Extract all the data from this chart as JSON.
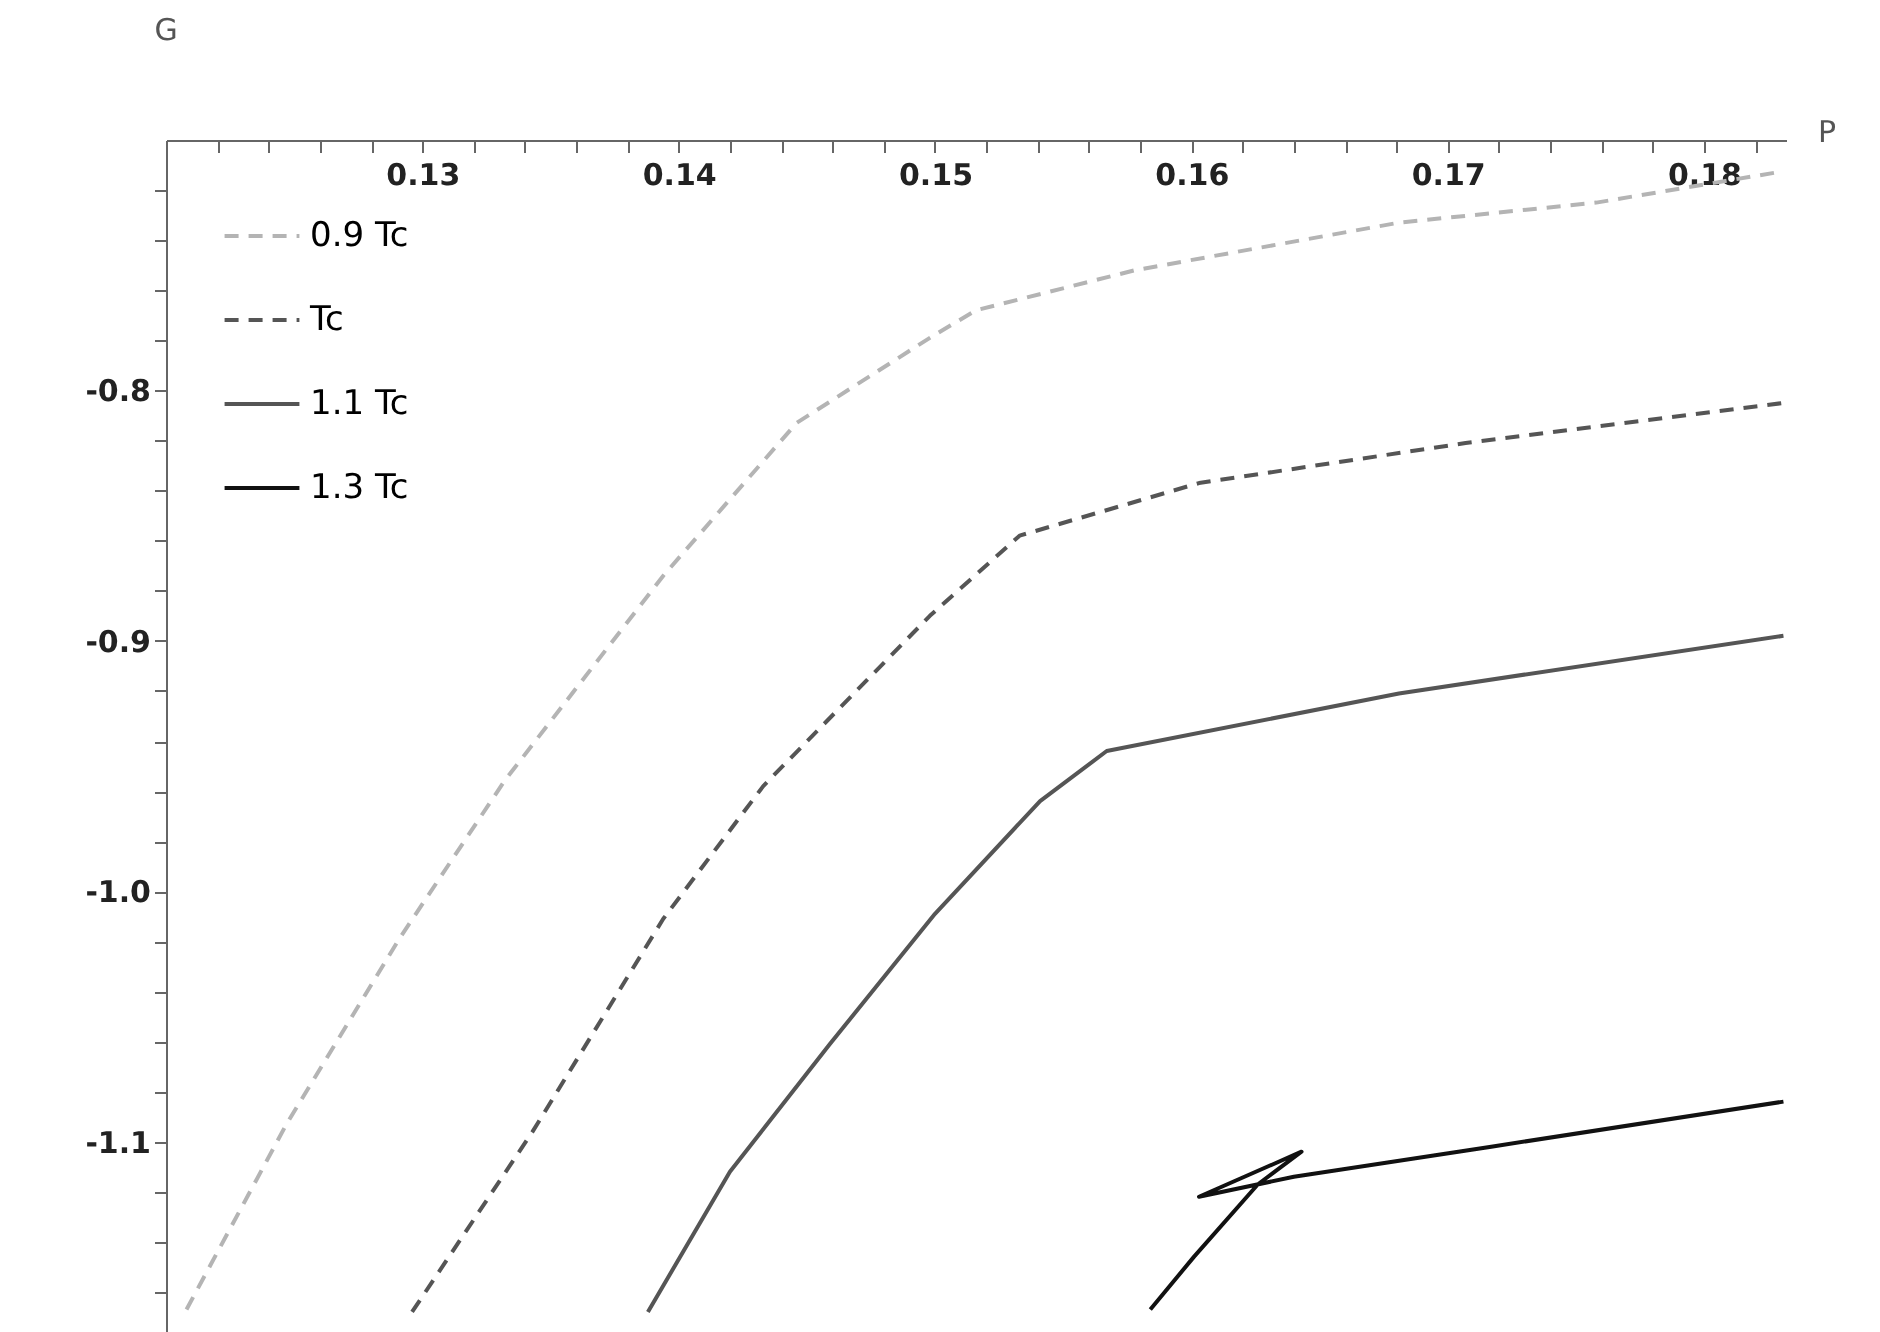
{
  "chart_data": {
    "type": "line",
    "xlabel": "P",
    "ylabel": "G",
    "xlim": [
      0.12,
      0.1832
    ],
    "ylim": [
      -1.176,
      -0.7
    ],
    "xticks": [
      {
        "value": 0.122,
        "label": null
      },
      {
        "value": 0.124,
        "label": null
      },
      {
        "value": 0.126,
        "label": null
      },
      {
        "value": 0.128,
        "label": null
      },
      0.13,
      {
        "value": 0.132,
        "label": null
      },
      {
        "value": 0.134,
        "label": null
      },
      {
        "value": 0.136,
        "label": null
      },
      {
        "value": 0.138,
        "label": null
      },
      0.14,
      {
        "value": 0.142,
        "label": null
      },
      {
        "value": 0.144,
        "label": null
      },
      {
        "value": 0.146,
        "label": null
      },
      {
        "value": 0.148,
        "label": null
      },
      0.15,
      {
        "value": 0.152,
        "label": null
      },
      {
        "value": 0.154,
        "label": null
      },
      {
        "value": 0.156,
        "label": null
      },
      {
        "value": 0.158,
        "label": null
      },
      0.16,
      {
        "value": 0.162,
        "label": null
      },
      {
        "value": 0.164,
        "label": null
      },
      {
        "value": 0.166,
        "label": null
      },
      {
        "value": 0.168,
        "label": null
      },
      0.17,
      {
        "value": 0.172,
        "label": null
      },
      {
        "value": 0.174,
        "label": null
      },
      {
        "value": 0.176,
        "label": null
      },
      {
        "value": 0.178,
        "label": null
      },
      0.18,
      {
        "value": 0.182,
        "label": null
      }
    ],
    "yticks": [
      {
        "value": -1.16,
        "label": null
      },
      {
        "value": -1.14,
        "label": null
      },
      {
        "value": -1.12,
        "label": null
      },
      -1.1,
      {
        "value": -1.08,
        "label": null
      },
      {
        "value": -1.06,
        "label": null
      },
      {
        "value": -1.04,
        "label": null
      },
      {
        "value": -1.02,
        "label": null
      },
      {
        "value": -1.0,
        "label": "-1.0"
      },
      {
        "value": -0.98,
        "label": null
      },
      {
        "value": -0.96,
        "label": null
      },
      {
        "value": -0.94,
        "label": null
      },
      {
        "value": -0.92,
        "label": null
      },
      -0.9,
      {
        "value": -0.88,
        "label": null
      },
      {
        "value": -0.86,
        "label": null
      },
      {
        "value": -0.84,
        "label": null
      },
      {
        "value": -0.82,
        "label": null
      },
      -0.8,
      {
        "value": -0.78,
        "label": null
      },
      {
        "value": -0.76,
        "label": null
      },
      {
        "value": -0.74,
        "label": null
      },
      {
        "value": -0.72,
        "label": null
      }
    ],
    "grid": false,
    "legend": "top left",
    "marker": "none",
    "series": [
      {
        "name": "0.9 Tc",
        "color": "#b4b4b4",
        "line_style": "dashed",
        "x": [
          0.1208,
          0.1247,
          0.1291,
          0.1332,
          0.1394,
          0.1446,
          0.1498,
          0.1516,
          0.1578,
          0.1681,
          0.1758,
          0.1828
        ],
        "values": [
          -1.167,
          -1.093,
          -1.019,
          -0.956,
          -0.874,
          -0.813,
          -0.779,
          -0.768,
          -0.752,
          -0.733,
          -0.725,
          -0.713
        ]
      },
      {
        "name": "Tc",
        "color": "#555555",
        "line_style": "dashed",
        "x": [
          0.1296,
          0.1343,
          0.1394,
          0.1433,
          0.1498,
          0.1533,
          0.1603,
          0.1707,
          0.1831
        ],
        "values": [
          -1.168,
          -1.096,
          -1.011,
          -0.958,
          -0.89,
          -0.858,
          -0.837,
          -0.821,
          -0.805
        ]
      },
      {
        "name": "1.1 Tc",
        "color": "#555555",
        "line_style": "solid",
        "x": [
          0.1388,
          0.142,
          0.1459,
          0.15,
          0.1541,
          0.1567,
          0.1681,
          0.1831
        ],
        "values": [
          -1.168,
          -1.112,
          -1.061,
          -1.009,
          -0.964,
          -0.944,
          -0.921,
          -0.898
        ]
      },
      {
        "name": "1.3 Tc",
        "color": "#111111",
        "line_style": "solid",
        "x": [
          0.1584,
          0.1601,
          0.1626,
          0.1643,
          0.1603,
          0.164,
          0.1717,
          0.1831
        ],
        "values": [
          -1.167,
          -1.146,
          -1.117,
          -1.104,
          -1.122,
          -1.114,
          -1.102,
          -1.084
        ]
      }
    ]
  }
}
